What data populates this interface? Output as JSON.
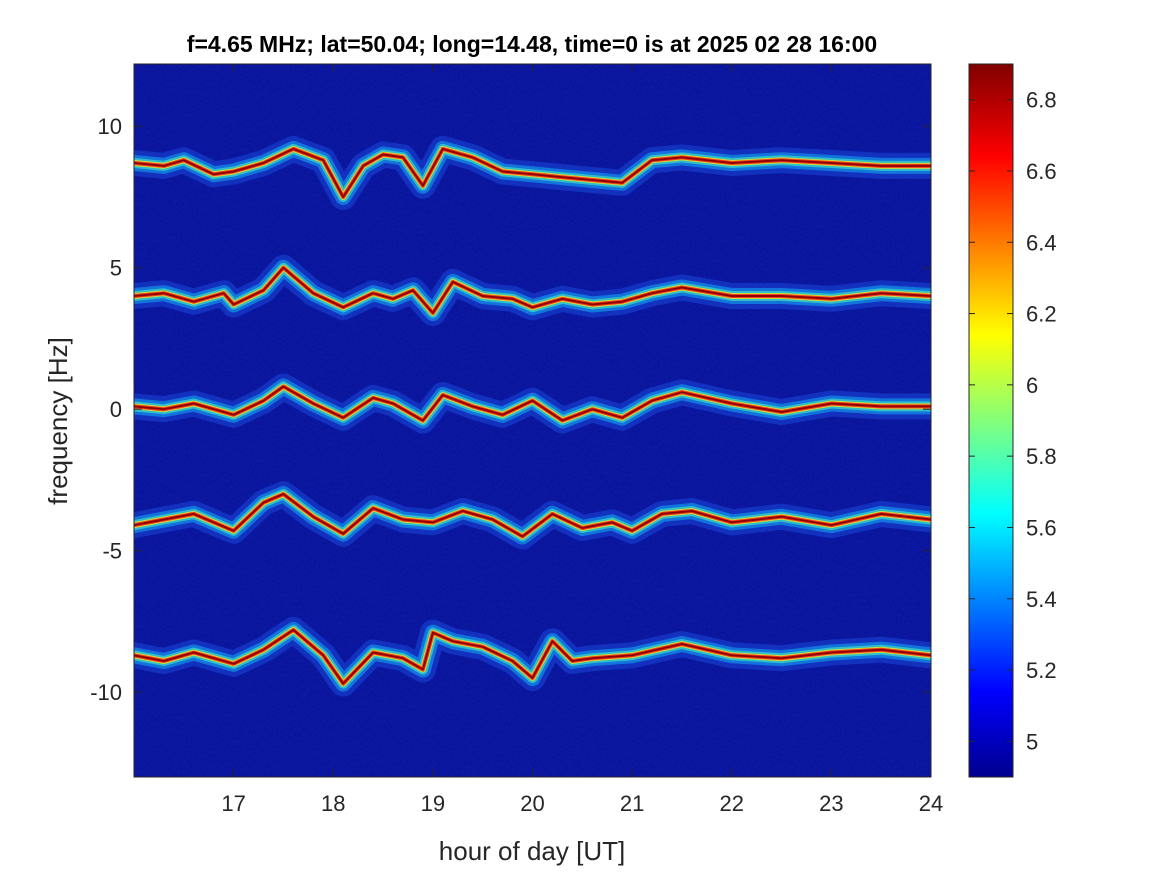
{
  "chart_data": {
    "type": "heatmap",
    "title": "f=4.65 MHz;  lat=50.04; long=14.48, time=0 is at 2025 02 28 16:00",
    "xlabel": "hour of day [UT]",
    "ylabel": "frequency [Hz]",
    "xlim": [
      16,
      24
    ],
    "ylim": [
      -13,
      12.2
    ],
    "xticks": [
      17,
      18,
      19,
      20,
      21,
      22,
      23,
      24
    ],
    "xtick_labels": [
      "17",
      "18",
      "19",
      "20",
      "21",
      "22",
      "23",
      "24"
    ],
    "yticks": [
      10,
      5,
      0,
      -5,
      -10
    ],
    "ytick_labels": [
      "10",
      "5",
      "0",
      "-5",
      "-10"
    ],
    "grid": false,
    "colormap": "jet",
    "colorbar": {
      "range": [
        4.9,
        6.9
      ],
      "ticks": [
        6.8,
        6.6,
        6.4,
        6.2,
        6.0,
        5.8,
        5.6,
        5.4,
        5.2,
        5.0
      ],
      "tick_labels": [
        "6.8",
        "6.6",
        "6.4",
        "6.2",
        "6",
        "5.8",
        "5.6",
        "5.4",
        "5.2",
        "5"
      ]
    },
    "background_color": "#0a149c",
    "traces": [
      {
        "x": [
          16.0,
          16.3,
          16.5,
          16.8,
          17.0,
          17.3,
          17.6,
          17.9,
          18.1,
          18.3,
          18.5,
          18.7,
          18.9,
          19.1,
          19.4,
          19.7,
          20.0,
          20.3,
          20.6,
          20.9,
          21.2,
          21.5,
          22.0,
          22.5,
          23.0,
          23.5,
          24.0
        ],
        "y": [
          8.7,
          8.6,
          8.8,
          8.3,
          8.4,
          8.7,
          9.2,
          8.8,
          7.5,
          8.6,
          9.0,
          8.9,
          7.9,
          9.2,
          8.9,
          8.4,
          8.3,
          8.2,
          8.1,
          8.0,
          8.8,
          8.9,
          8.7,
          8.8,
          8.7,
          8.6,
          8.6
        ]
      },
      {
        "x": [
          16.0,
          16.3,
          16.6,
          16.9,
          17.0,
          17.3,
          17.5,
          17.8,
          18.1,
          18.4,
          18.6,
          18.8,
          19.0,
          19.2,
          19.5,
          19.8,
          20.0,
          20.3,
          20.6,
          20.9,
          21.2,
          21.5,
          22.0,
          22.5,
          23.0,
          23.5,
          24.0
        ],
        "y": [
          4.0,
          4.1,
          3.8,
          4.1,
          3.7,
          4.2,
          5.0,
          4.1,
          3.6,
          4.1,
          3.9,
          4.2,
          3.4,
          4.5,
          4.0,
          3.9,
          3.6,
          3.9,
          3.7,
          3.8,
          4.1,
          4.3,
          4.0,
          4.0,
          3.9,
          4.1,
          4.0
        ]
      },
      {
        "x": [
          16.0,
          16.3,
          16.6,
          17.0,
          17.3,
          17.5,
          17.8,
          18.1,
          18.4,
          18.6,
          18.9,
          19.1,
          19.4,
          19.7,
          20.0,
          20.3,
          20.6,
          20.9,
          21.2,
          21.5,
          22.0,
          22.5,
          23.0,
          23.5,
          24.0
        ],
        "y": [
          0.1,
          0.0,
          0.2,
          -0.2,
          0.3,
          0.8,
          0.2,
          -0.3,
          0.4,
          0.2,
          -0.4,
          0.5,
          0.1,
          -0.2,
          0.3,
          -0.4,
          0.0,
          -0.3,
          0.3,
          0.6,
          0.2,
          -0.1,
          0.2,
          0.1,
          0.1
        ]
      },
      {
        "x": [
          16.0,
          16.3,
          16.6,
          17.0,
          17.3,
          17.5,
          17.8,
          18.1,
          18.4,
          18.7,
          19.0,
          19.3,
          19.6,
          19.9,
          20.2,
          20.5,
          20.8,
          21.0,
          21.3,
          21.6,
          22.0,
          22.5,
          23.0,
          23.5,
          24.0
        ],
        "y": [
          -4.1,
          -3.9,
          -3.7,
          -4.3,
          -3.3,
          -3.0,
          -3.8,
          -4.4,
          -3.5,
          -3.9,
          -4.0,
          -3.6,
          -3.9,
          -4.5,
          -3.7,
          -4.2,
          -4.0,
          -4.3,
          -3.7,
          -3.6,
          -4.0,
          -3.8,
          -4.1,
          -3.7,
          -3.9
        ]
      },
      {
        "x": [
          16.0,
          16.3,
          16.6,
          17.0,
          17.3,
          17.6,
          17.9,
          18.1,
          18.4,
          18.7,
          18.9,
          19.0,
          19.2,
          19.5,
          19.8,
          20.0,
          20.2,
          20.4,
          20.6,
          21.0,
          21.5,
          22.0,
          22.5,
          23.0,
          23.5,
          24.0
        ],
        "y": [
          -8.7,
          -8.9,
          -8.6,
          -9.0,
          -8.5,
          -7.8,
          -8.7,
          -9.7,
          -8.6,
          -8.8,
          -9.2,
          -7.9,
          -8.2,
          -8.4,
          -8.9,
          -9.5,
          -8.2,
          -8.9,
          -8.8,
          -8.7,
          -8.3,
          -8.7,
          -8.8,
          -8.6,
          -8.5,
          -8.7
        ]
      }
    ]
  }
}
